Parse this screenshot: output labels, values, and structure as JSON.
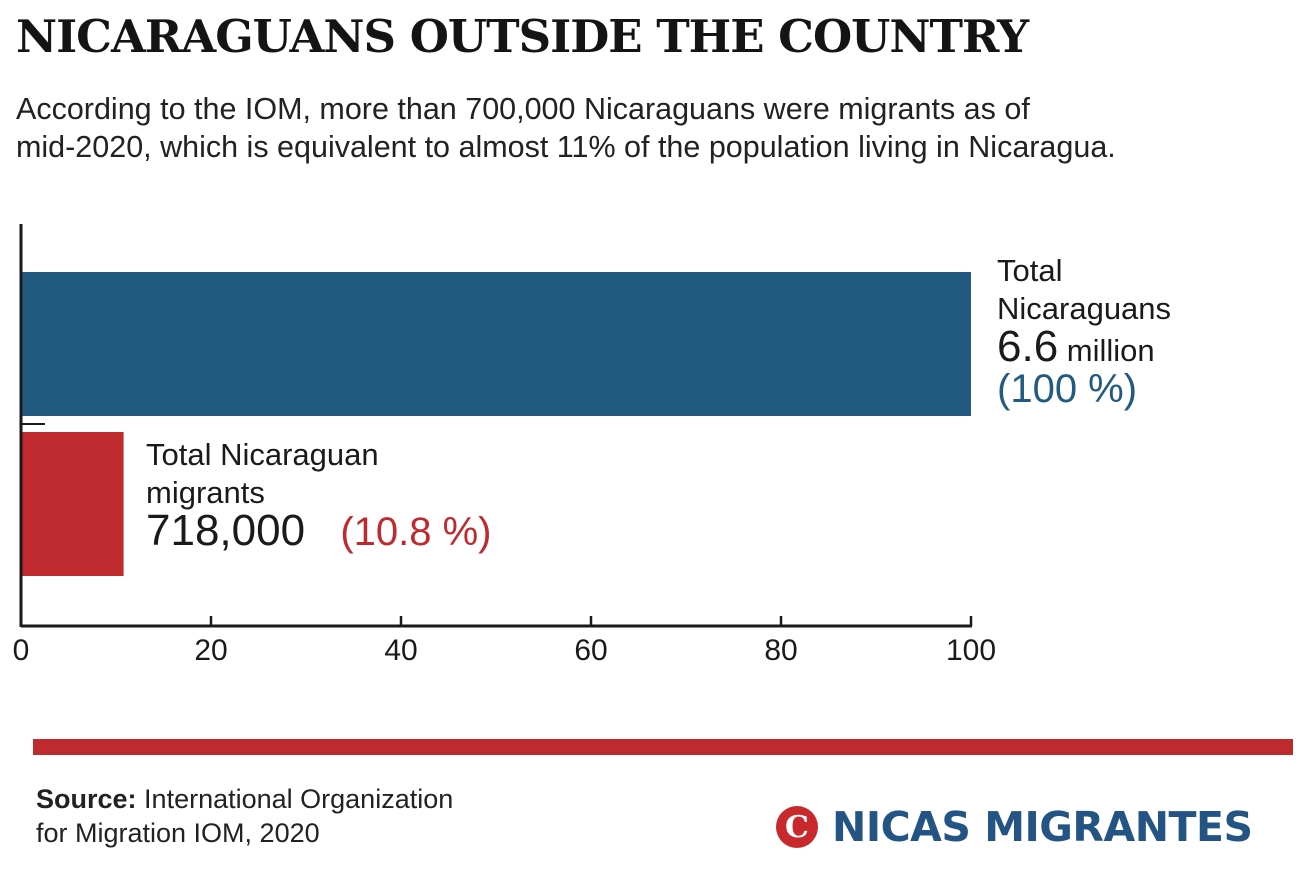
{
  "header": {
    "title": "NICARAGUANS OUTSIDE THE COUNTRY",
    "subtitle_line1": "According to the IOM, more than 700,000 Nicaraguans were migrants as of",
    "subtitle_line2": "mid-2020, which is equivalent to almost 11% of the population living in Nicaragua."
  },
  "chart_data": {
    "type": "bar",
    "orientation": "horizontal",
    "title": "NICARAGUANS OUTSIDE THE COUNTRY",
    "xlabel": "",
    "ylabel": "",
    "xlim": [
      0,
      100
    ],
    "xticks": [
      "0",
      "20",
      "40",
      "60",
      "80",
      "100"
    ],
    "xtick_values": [
      0,
      20,
      40,
      60,
      80,
      100
    ],
    "grid": false,
    "categories": [
      "Total Nicaraguans",
      "Total Nicaraguan migrants"
    ],
    "values": [
      100,
      10.8
    ],
    "colors": [
      "#235a80",
      "#be2a2d"
    ],
    "annotations": [
      {
        "label_line1": "Total",
        "label_line2": "Nicaraguans",
        "value": "6.6",
        "unit": "million",
        "percent": "(100 %)"
      },
      {
        "label_line1": "Total Nicaraguan",
        "label_line2": "migrants",
        "value": "718,000",
        "unit": "",
        "percent": "(10.8 %)"
      }
    ]
  },
  "footer": {
    "source_label": "Source:",
    "source_line1": "International Organization",
    "source_line2": "for Migration IOM, 2020",
    "logo_glyph": "C",
    "logo_text": "NICAS MIGRANTES",
    "rule_color": "#be2a2d",
    "logo_color": "#245483"
  }
}
